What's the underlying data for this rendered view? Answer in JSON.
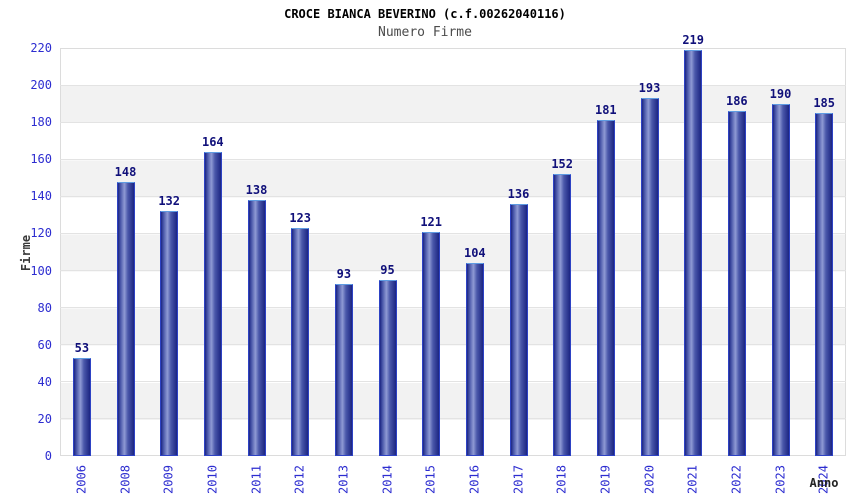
{
  "chart_data": {
    "type": "bar",
    "title": "CROCE BIANCA BEVERINO (c.f.00262040116)",
    "subtitle": "Numero Firme",
    "xlabel": "Anno",
    "ylabel": "Firme",
    "categories": [
      "2006",
      "2008",
      "2009",
      "2010",
      "2011",
      "2012",
      "2013",
      "2014",
      "2015",
      "2016",
      "2017",
      "2018",
      "2019",
      "2020",
      "2021",
      "2022",
      "2023",
      "2024"
    ],
    "values": [
      53,
      148,
      132,
      164,
      138,
      123,
      93,
      95,
      121,
      104,
      136,
      152,
      181,
      193,
      219,
      186,
      190,
      185
    ],
    "ylim": [
      0,
      220
    ],
    "ytick_step": 20,
    "grid": "horizontal-bands",
    "legend": "none",
    "colors": {
      "axis-text": "#2d2dd0",
      "value-text": "#10107a",
      "title-text": "#000000",
      "subtitle-text": "#4c4c4c",
      "axis-title-text": "#3a3a3a",
      "band": "#f2f2f2",
      "gridline": "#e3e3e3",
      "plot-border": "#dcdcdc",
      "bar-border": "#2d42c4",
      "bar-border-top": "#5e9be2",
      "bar-dark": "#1c2582",
      "bar-mid": "#4a58aa",
      "bar-light": "#8f9ad4"
    }
  }
}
